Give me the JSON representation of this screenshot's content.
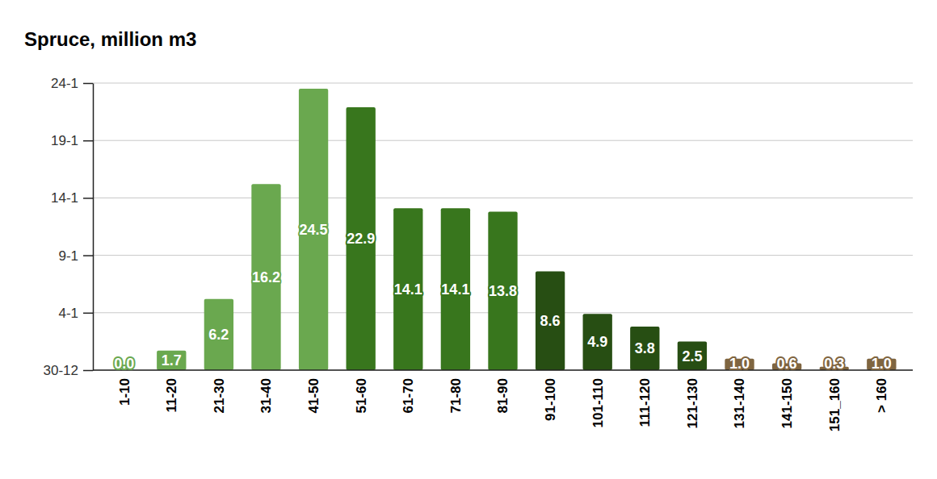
{
  "chart_data": {
    "type": "bar",
    "title": "Spruce, million m3",
    "categories": [
      "1-10",
      "11-20",
      "21-30",
      "31-40",
      "41-50",
      "51-60",
      "61-70",
      "71-80",
      "81-90",
      "91-100",
      "101-110",
      "111-120",
      "121-130",
      "131-140",
      "141-150",
      "151_160",
      "> 160"
    ],
    "values": [
      0,
      1.7,
      6.2,
      16.2,
      24.5,
      22.9,
      14.1,
      14.1,
      13.8,
      8.6,
      4.9,
      3.8,
      2.5,
      1.0,
      0.6,
      0.3,
      1.0
    ],
    "value_labels": [
      "0.0",
      "1.7",
      "6.2",
      "16.2",
      "24.5",
      "22.9",
      "14.1",
      "14.1",
      "13.8",
      "8.6",
      "4.9",
      "3.8",
      "2.5",
      "1.0",
      "0.6",
      "0.3",
      "1.0"
    ],
    "colors": [
      "#6aa84f",
      "#6aa84f",
      "#6aa84f",
      "#6aa84f",
      "#6aa84f",
      "#38761d",
      "#38761d",
      "#38761d",
      "#38761d",
      "#274e13",
      "#274e13",
      "#274e13",
      "#274e13",
      "#7f6540",
      "#7f6540",
      "#7f6540",
      "#7f6540"
    ],
    "ylim": [
      0,
      25
    ],
    "yticks": [
      {
        "value": 0,
        "label": "30-12"
      },
      {
        "value": 5,
        "label": "4-1"
      },
      {
        "value": 10,
        "label": "9-1"
      },
      {
        "value": 15,
        "label": "14-1"
      },
      {
        "value": 20,
        "label": "19-1"
      },
      {
        "value": 25,
        "label": "24-1"
      }
    ],
    "grid": true,
    "data_labels": true
  }
}
